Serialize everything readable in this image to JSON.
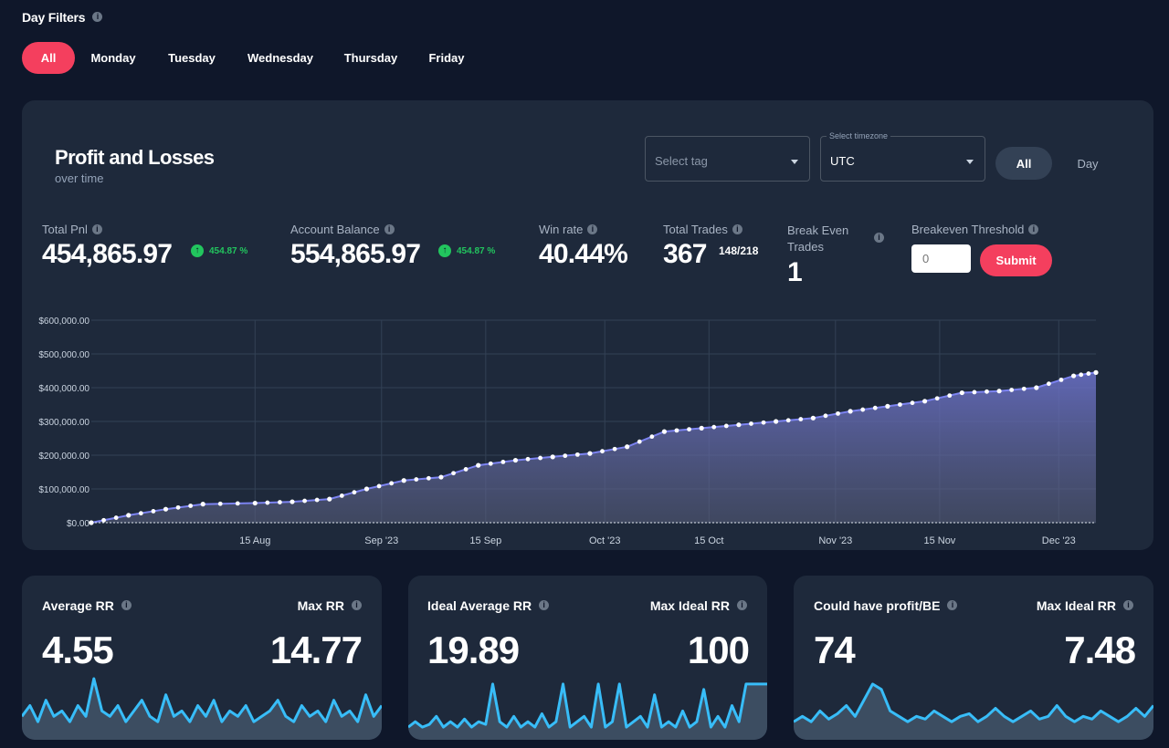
{
  "filters": {
    "title": "Day Filters",
    "days": [
      "All",
      "Monday",
      "Tuesday",
      "Wednesday",
      "Thursday",
      "Friday"
    ],
    "active": "All"
  },
  "pnl": {
    "title": "Profit and Losses",
    "subtitle": "over time",
    "tag_placeholder": "Select tag",
    "timezone_legend": "Select timezone",
    "timezone_value": "UTC",
    "toggle_all": "All",
    "toggle_day": "Day"
  },
  "stats": {
    "total_pnl_label": "Total Pnl",
    "total_pnl_value": "454,865.97",
    "total_pnl_pct": "454.87 %",
    "balance_label": "Account Balance",
    "balance_value": "554,865.97",
    "balance_pct": "454.87 %",
    "winrate_label": "Win rate",
    "winrate_value": "40.44%",
    "trades_label": "Total Trades",
    "trades_value": "367",
    "trades_sub": "148/218",
    "be_label_1": "Break Even",
    "be_label_2": "Trades",
    "be_value": "1",
    "threshold_label": "Breakeven Threshold",
    "threshold_placeholder": "0",
    "submit_label": "Submit"
  },
  "colors": {
    "accent": "#f43f5e",
    "positive": "#22c55e",
    "line": "#7c83f0",
    "spark": "#38bdf8"
  },
  "chart_data": {
    "type": "area",
    "y_ticks": [
      "$600,000.00",
      "$500,000.00",
      "$400,000.00",
      "$300,000.00",
      "$200,000.00",
      "$100,000.00",
      "$0.00"
    ],
    "x_ticks": [
      "15 Aug",
      "Sep '23",
      "15 Sep",
      "Oct '23",
      "15 Oct",
      "Nov '23",
      "15 Nov",
      "Dec '23"
    ],
    "ylim": [
      0,
      600000
    ],
    "x": [
      "2023-07-24",
      "2023-07-29",
      "2023-08-03",
      "2023-08-08",
      "2023-08-15",
      "2023-08-20",
      "2023-08-25",
      "2023-08-30",
      "2023-09-04",
      "2023-09-09",
      "2023-09-14",
      "2023-09-19",
      "2023-09-24",
      "2023-09-29",
      "2023-10-04",
      "2023-10-09",
      "2023-10-14",
      "2023-10-19",
      "2023-10-24",
      "2023-10-29",
      "2023-11-03",
      "2023-11-08",
      "2023-11-13",
      "2023-11-18",
      "2023-11-23",
      "2023-11-28",
      "2023-12-03",
      "2023-12-06"
    ],
    "values": [
      0,
      22000,
      40000,
      55000,
      58000,
      62000,
      70000,
      100000,
      125000,
      135000,
      170000,
      185000,
      195000,
      205000,
      225000,
      270000,
      280000,
      290000,
      300000,
      310000,
      330000,
      345000,
      360000,
      385000,
      390000,
      400000,
      435000,
      445000
    ]
  },
  "mini_cards": [
    {
      "left_label": "Average RR",
      "left_value": "4.55",
      "right_label": "Max RR",
      "right_value": "14.77",
      "spark": [
        0.3,
        0.5,
        0.2,
        0.6,
        0.3,
        0.4,
        0.2,
        0.5,
        0.3,
        1.0,
        0.4,
        0.3,
        0.5,
        0.2,
        0.4,
        0.6,
        0.3,
        0.2,
        0.7,
        0.3,
        0.4,
        0.2,
        0.5,
        0.3,
        0.6,
        0.2,
        0.4,
        0.3,
        0.5,
        0.2,
        0.3,
        0.4,
        0.6,
        0.3,
        0.2,
        0.5,
        0.3,
        0.4,
        0.2,
        0.6,
        0.3,
        0.4,
        0.2,
        0.7,
        0.3,
        0.5
      ]
    },
    {
      "left_label": "Ideal Average RR",
      "left_value": "19.89",
      "right_label": "Max Ideal RR",
      "right_value": "100",
      "spark": [
        0.1,
        0.2,
        0.1,
        0.15,
        0.3,
        0.1,
        0.2,
        0.1,
        0.25,
        0.1,
        0.2,
        0.15,
        0.9,
        0.2,
        0.1,
        0.3,
        0.1,
        0.2,
        0.1,
        0.35,
        0.1,
        0.2,
        0.9,
        0.1,
        0.2,
        0.3,
        0.1,
        0.9,
        0.1,
        0.2,
        0.9,
        0.1,
        0.2,
        0.3,
        0.1,
        0.7,
        0.1,
        0.2,
        0.1,
        0.4,
        0.1,
        0.2,
        0.8,
        0.1,
        0.3,
        0.1,
        0.5,
        0.2,
        0.9,
        0.9,
        0.9,
        0.9
      ]
    },
    {
      "left_label": "Could have profit/BE",
      "left_value": "74",
      "right_label": "Max Ideal RR",
      "right_value": "7.48",
      "spark": [
        0.2,
        0.3,
        0.2,
        0.4,
        0.25,
        0.35,
        0.5,
        0.3,
        0.6,
        0.9,
        0.8,
        0.4,
        0.3,
        0.2,
        0.3,
        0.25,
        0.4,
        0.3,
        0.2,
        0.3,
        0.35,
        0.2,
        0.3,
        0.45,
        0.3,
        0.2,
        0.3,
        0.4,
        0.25,
        0.3,
        0.5,
        0.3,
        0.2,
        0.3,
        0.25,
        0.4,
        0.3,
        0.2,
        0.3,
        0.45,
        0.3,
        0.5
      ]
    }
  ]
}
